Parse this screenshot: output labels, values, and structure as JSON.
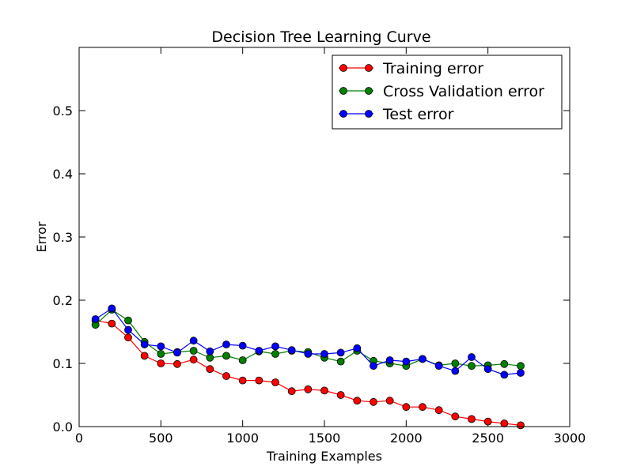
{
  "chart_data": {
    "type": "line",
    "title": "Decision Tree Learning Curve",
    "xlabel": "Training Examples",
    "ylabel": "Error",
    "xlim": [
      0,
      3000
    ],
    "ylim": [
      0,
      0.6
    ],
    "xticks": [
      0,
      500,
      1000,
      1500,
      2000,
      2500,
      3000
    ],
    "yticks": [
      0.0,
      0.1,
      0.2,
      0.3,
      0.4,
      0.5
    ],
    "ytick_labels": [
      "0.0",
      "0.1",
      "0.2",
      "0.3",
      "0.4",
      "0.5"
    ],
    "grid": false,
    "legend_position": "top-right",
    "x": [
      100,
      200,
      300,
      400,
      500,
      600,
      700,
      800,
      900,
      1000,
      1100,
      1200,
      1300,
      1400,
      1500,
      1600,
      1700,
      1800,
      1900,
      2000,
      2100,
      2200,
      2300,
      2400,
      2500,
      2600,
      2700
    ],
    "series": [
      {
        "name": "Training error",
        "color": "#ff0000",
        "values": [
          0.168,
          0.163,
          0.141,
          0.112,
          0.1,
          0.099,
          0.106,
          0.091,
          0.08,
          0.073,
          0.073,
          0.07,
          0.056,
          0.059,
          0.057,
          0.05,
          0.041,
          0.039,
          0.041,
          0.031,
          0.031,
          0.026,
          0.016,
          0.012,
          0.008,
          0.005,
          0.002
        ]
      },
      {
        "name": "Cross Validation error",
        "color": "#008000",
        "values": [
          0.161,
          0.185,
          0.168,
          0.134,
          0.115,
          0.118,
          0.12,
          0.109,
          0.112,
          0.105,
          0.119,
          0.115,
          0.12,
          0.118,
          0.109,
          0.103,
          0.12,
          0.104,
          0.1,
          0.096,
          0.107,
          0.097,
          0.1,
          0.096,
          0.097,
          0.099,
          0.096
        ]
      },
      {
        "name": "Test error",
        "color": "#0000ff",
        "values": [
          0.17,
          0.187,
          0.153,
          0.13,
          0.127,
          0.117,
          0.136,
          0.119,
          0.13,
          0.128,
          0.12,
          0.127,
          0.121,
          0.115,
          0.115,
          0.117,
          0.124,
          0.096,
          0.105,
          0.103,
          0.107,
          0.096,
          0.088,
          0.11,
          0.091,
          0.082,
          0.085
        ]
      }
    ]
  }
}
